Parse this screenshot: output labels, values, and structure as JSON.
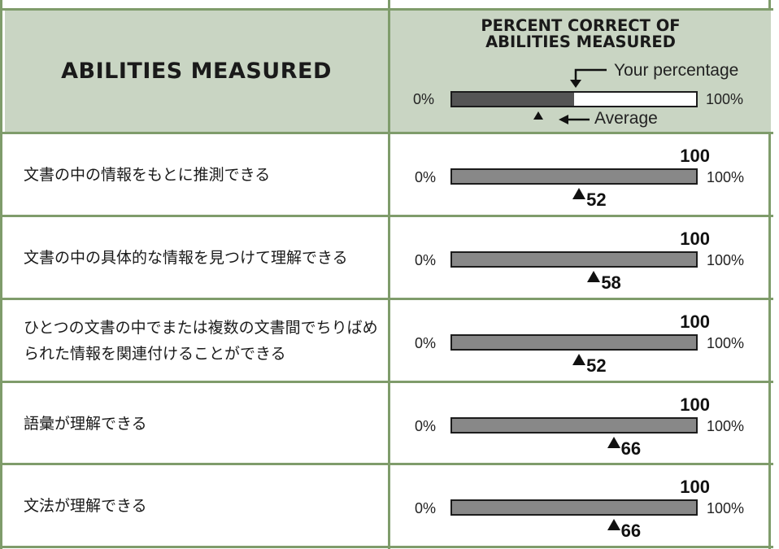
{
  "header": {
    "abilities_title": "ABILITIES MEASURED",
    "percent_title_line1": "PERCENT CORRECT OF",
    "percent_title_line2": "ABILITIES MEASURED",
    "legend": {
      "your_percentage_label": "Your percentage",
      "average_label": "Average",
      "min_label": "0%",
      "max_label": "100%",
      "your_fill_fraction": 0.5
    }
  },
  "rows": [
    {
      "ability": "文書の中の情報をもとに推測できる",
      "score": "100",
      "score_pct": 100,
      "average": "52",
      "average_pct": 52,
      "min_label": "0%",
      "max_label": "100%"
    },
    {
      "ability": "文書の中の具体的な情報を見つけて理解できる",
      "score": "100",
      "score_pct": 100,
      "average": "58",
      "average_pct": 58,
      "min_label": "0%",
      "max_label": "100%"
    },
    {
      "ability": "ひとつの文書の中でまたは複数の文書間でちりばめられた情報を関連付けることができる",
      "score": "100",
      "score_pct": 100,
      "average": "52",
      "average_pct": 52,
      "min_label": "0%",
      "max_label": "100%"
    },
    {
      "ability": "語彙が理解できる",
      "score": "100",
      "score_pct": 100,
      "average": "66",
      "average_pct": 66,
      "min_label": "0%",
      "max_label": "100%"
    },
    {
      "ability": "文法が理解できる",
      "score": "100",
      "score_pct": 100,
      "average": "66",
      "average_pct": 66,
      "min_label": "0%",
      "max_label": "100%"
    }
  ],
  "colors": {
    "header_bg": "#c9d5c3",
    "border": "#7f9c6b",
    "bar_fill": "#888888",
    "legend_fill": "#555555"
  }
}
